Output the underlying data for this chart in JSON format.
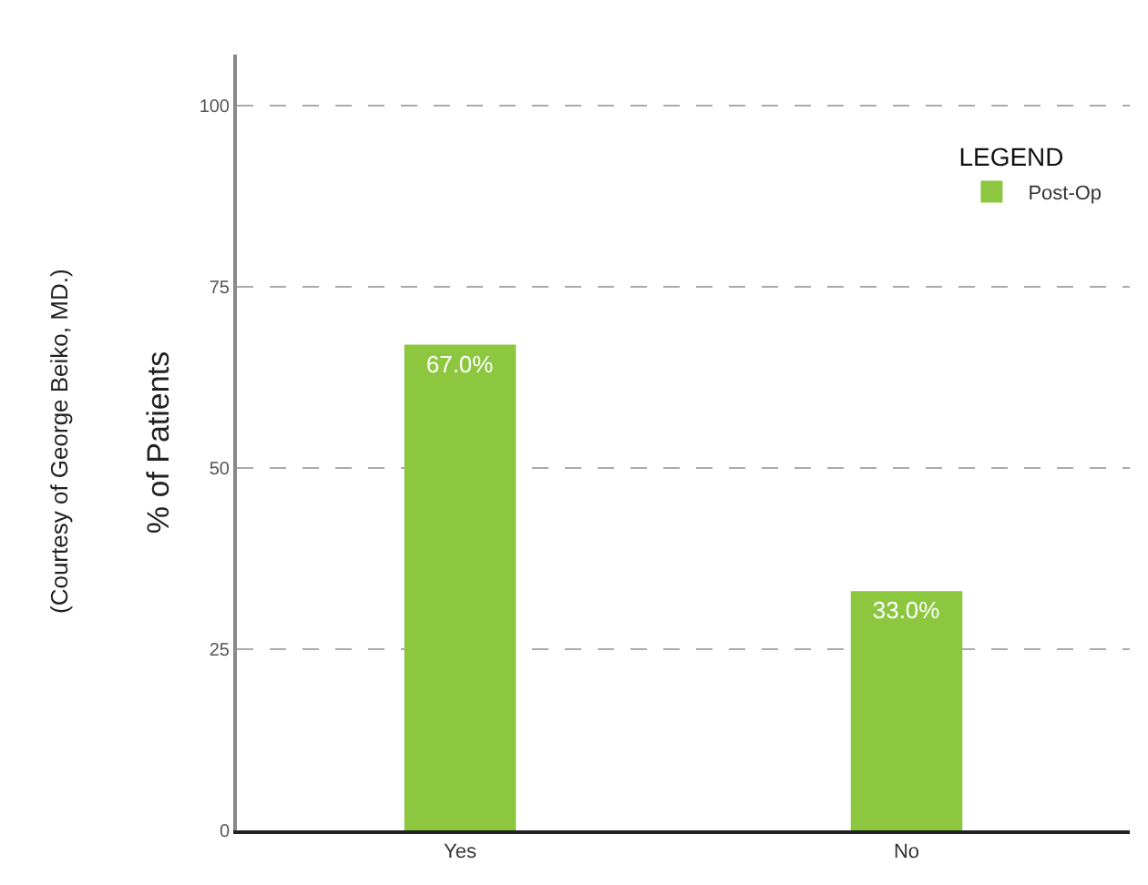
{
  "chart_data": {
    "type": "bar",
    "categories": [
      "Yes",
      "No"
    ],
    "series": [
      {
        "name": "Post-Op",
        "color": "#8dc63f",
        "values": [
          67,
          33
        ],
        "value_labels": [
          "67.0%",
          "33.0%"
        ]
      }
    ],
    "ylabel": "% of Patients",
    "legend_title": "LEGEND",
    "legend": "top right",
    "ylim": [
      0,
      107
    ],
    "yticks": [
      0,
      25,
      50,
      75,
      100
    ],
    "grid": "y",
    "annotations": [
      "(Courtesy of George Beiko, MD.)"
    ]
  }
}
